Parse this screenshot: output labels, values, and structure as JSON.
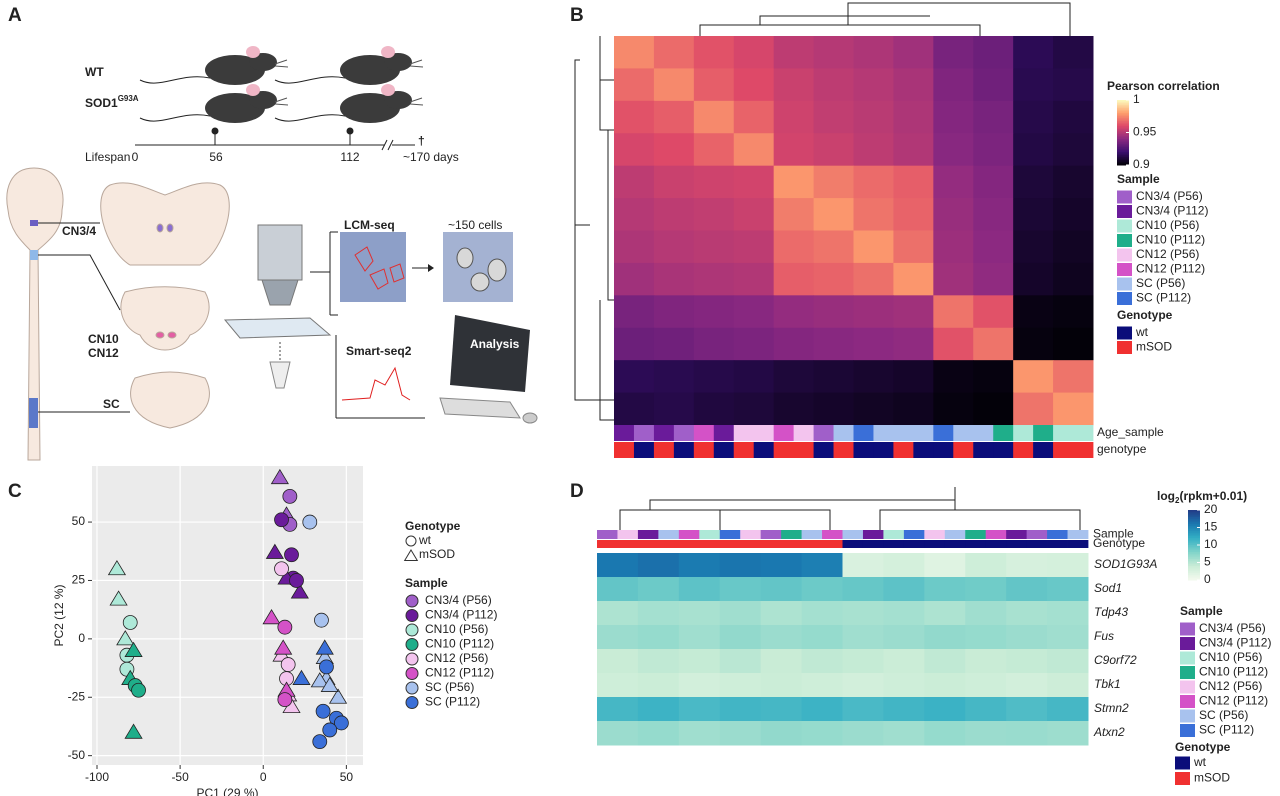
{
  "panels": {
    "a": "A",
    "b": "B",
    "c": "C",
    "d": "D"
  },
  "panel_a": {
    "rows": [
      "WT",
      "SOD1"
    ],
    "superscript": "G93A",
    "timeline": {
      "label": "Lifespan",
      "ticks": [
        "0",
        "56",
        "112",
        "~170 days"
      ],
      "end": "†"
    },
    "regions": [
      "CN3/4",
      "CN10",
      "CN12",
      "SC"
    ],
    "steps": [
      "LCM-seq",
      "~150 cells",
      "Smart-seq2",
      "Analysis"
    ]
  },
  "chart_data": [
    {
      "type": "heatmap",
      "colorbar_title": "Pearson correlation",
      "zlim": [
        0.9,
        1
      ],
      "zticks": [
        1,
        0.95,
        0.9
      ],
      "colormap": [
        "#000004",
        "#3b0f70",
        "#8c2981",
        "#de4968",
        "#fe9f6d",
        "#fcfdbf"
      ],
      "values": [
        [
          0.975,
          0.968,
          0.962,
          0.958,
          0.952,
          0.95,
          0.948,
          0.945,
          0.935,
          0.932,
          0.915,
          0.912
        ],
        [
          0.968,
          0.975,
          0.965,
          0.96,
          0.955,
          0.952,
          0.95,
          0.947,
          0.937,
          0.933,
          0.914,
          0.913
        ],
        [
          0.962,
          0.965,
          0.975,
          0.966,
          0.956,
          0.953,
          0.951,
          0.948,
          0.938,
          0.935,
          0.913,
          0.911
        ],
        [
          0.958,
          0.96,
          0.966,
          0.975,
          0.957,
          0.955,
          0.952,
          0.949,
          0.939,
          0.936,
          0.912,
          0.91
        ],
        [
          0.952,
          0.955,
          0.956,
          0.957,
          0.978,
          0.972,
          0.968,
          0.965,
          0.942,
          0.938,
          0.91,
          0.908
        ],
        [
          0.95,
          0.952,
          0.953,
          0.955,
          0.972,
          0.978,
          0.97,
          0.966,
          0.943,
          0.939,
          0.909,
          0.907
        ],
        [
          0.948,
          0.95,
          0.951,
          0.952,
          0.968,
          0.97,
          0.978,
          0.969,
          0.944,
          0.94,
          0.908,
          0.906
        ],
        [
          0.945,
          0.947,
          0.948,
          0.949,
          0.965,
          0.966,
          0.969,
          0.978,
          0.945,
          0.941,
          0.907,
          0.905
        ],
        [
          0.935,
          0.937,
          0.938,
          0.939,
          0.942,
          0.943,
          0.944,
          0.945,
          0.97,
          0.962,
          0.903,
          0.902
        ],
        [
          0.932,
          0.933,
          0.935,
          0.936,
          0.938,
          0.939,
          0.94,
          0.941,
          0.962,
          0.97,
          0.902,
          0.901
        ],
        [
          0.915,
          0.914,
          0.913,
          0.912,
          0.91,
          0.909,
          0.908,
          0.907,
          0.903,
          0.902,
          0.978,
          0.97
        ],
        [
          0.912,
          0.913,
          0.911,
          0.91,
          0.908,
          0.907,
          0.906,
          0.905,
          0.902,
          0.901,
          0.97,
          0.978
        ]
      ],
      "annotations": [
        {
          "label": "Age_sample",
          "colors": [
            "#6a1b9a",
            "#a05fc9",
            "#6a1b9a",
            "#a05fc9",
            "#d452c7",
            "#6a1b9a",
            "#f3c4ee",
            "#f3c4ee",
            "#d452c7",
            "#f3c4ee",
            "#a05fc9",
            "#a8c2ee",
            "#3a6fd8",
            "#a8c2ee",
            "#a8c2ee",
            "#a8c2ee",
            "#3a6fd8",
            "#a8c2ee",
            "#a8c2ee",
            "#1fae8a",
            "#aee9d8",
            "#1fae8a",
            "#aee9d8",
            "#aee9d8"
          ]
        },
        {
          "label": "genotype",
          "colors": [
            "#f03030",
            "#0b0d7a",
            "#f03030",
            "#0b0d7a",
            "#f03030",
            "#0b0d7a",
            "#f03030",
            "#0b0d7a",
            "#f03030",
            "#f03030",
            "#0b0d7a",
            "#f03030",
            "#0b0d7a",
            "#0b0d7a",
            "#f03030",
            "#0b0d7a",
            "#0b0d7a",
            "#f03030",
            "#0b0d7a",
            "#0b0d7a",
            "#f03030",
            "#0b0d7a",
            "#f03030",
            "#f03030"
          ]
        }
      ],
      "sample_title": "Sample",
      "genotype_title": "Genotype",
      "genotype_legend": [
        {
          "name": "wt",
          "color": "#0b0d7a"
        },
        {
          "name": "mSOD",
          "color": "#f03030"
        }
      ]
    },
    {
      "type": "scatter",
      "xlabel": "PC1 (29 %)",
      "ylabel": "PC2 (12 %)",
      "xlim": [
        -103,
        60
      ],
      "ylim": [
        -54,
        74
      ],
      "xticks": [
        -100,
        -50,
        0,
        50
      ],
      "yticks": [
        -50,
        -25,
        0,
        25,
        50
      ],
      "grid": true,
      "genotype_title": "Genotype",
      "genotypes": [
        "wt",
        "mSOD"
      ],
      "sample_title": "Sample",
      "series": [
        {
          "name": "CN3/4 (P56)",
          "color": "#a05fc9",
          "x": [
            10,
            16,
            14,
            16
          ],
          "values": [
            69,
            61,
            53,
            49
          ],
          "genotype": [
            "mSOD",
            "wt",
            "mSOD",
            "wt"
          ]
        },
        {
          "name": "CN3/4 (P112)",
          "color": "#6a1b9a",
          "x": [
            11,
            7,
            17,
            18,
            14,
            22,
            20
          ],
          "values": [
            51,
            37,
            36,
            26,
            26,
            20,
            25
          ],
          "genotype": [
            "wt",
            "mSOD",
            "wt",
            "wt",
            "mSOD",
            "mSOD",
            "wt"
          ]
        },
        {
          "name": "CN10 (P56)",
          "color": "#aee9d8",
          "x": [
            -88,
            -87,
            -83,
            -80,
            -82,
            -82
          ],
          "values": [
            30,
            17,
            0,
            7,
            -7,
            -13
          ],
          "genotype": [
            "mSOD",
            "mSOD",
            "mSOD",
            "wt",
            "wt",
            "wt"
          ]
        },
        {
          "name": "CN10 (P112)",
          "color": "#1fae8a",
          "x": [
            -80,
            -78,
            -77,
            -75,
            -78
          ],
          "values": [
            -17,
            -5,
            -20,
            -22,
            -40
          ],
          "genotype": [
            "mSOD",
            "mSOD",
            "wt",
            "wt",
            "mSOD"
          ]
        },
        {
          "name": "CN12 (P56)",
          "color": "#f3c4ee",
          "x": [
            11,
            11,
            15,
            15,
            17,
            14
          ],
          "values": [
            30,
            -7,
            -11,
            -24,
            -29,
            -17
          ],
          "genotype": [
            "wt",
            "mSOD",
            "wt",
            "mSOD",
            "mSOD",
            "wt"
          ]
        },
        {
          "name": "CN12 (P112)",
          "color": "#d452c7",
          "x": [
            5,
            13,
            12,
            14,
            13
          ],
          "values": [
            9,
            5,
            -4,
            -22,
            -26
          ],
          "genotype": [
            "mSOD",
            "wt",
            "mSOD",
            "mSOD",
            "wt"
          ]
        },
        {
          "name": "SC (P56)",
          "color": "#a8c2ee",
          "x": [
            28,
            35,
            37,
            38,
            34,
            45,
            40
          ],
          "values": [
            50,
            8,
            -8,
            -17,
            -18,
            -25,
            -20
          ],
          "genotype": [
            "wt",
            "wt",
            "mSOD",
            "mSOD",
            "mSOD",
            "mSOD",
            "mSOD"
          ]
        },
        {
          "name": "SC (P112)",
          "color": "#3a6fd8",
          "x": [
            23,
            37,
            38,
            36,
            44,
            47,
            34,
            40
          ],
          "values": [
            -17,
            -4,
            -12,
            -31,
            -34,
            -36,
            -44,
            -39
          ],
          "genotype": [
            "mSOD",
            "mSOD",
            "wt",
            "wt",
            "wt",
            "wt",
            "wt",
            "wt"
          ]
        }
      ]
    },
    {
      "type": "heatmap",
      "colorbar_title": "log",
      "colorbar_title_sub": "2",
      "colorbar_title_rest": "(rpkm+0.01)",
      "zlim": [
        0,
        20
      ],
      "zticks": [
        20,
        15,
        10,
        5,
        0
      ],
      "colormap": [
        "#f4faee",
        "#c9ecd6",
        "#7fd3c9",
        "#33aec4",
        "#1a78b0",
        "#233a86"
      ],
      "rows": [
        "SOD1G93A",
        "Sod1",
        "Tdp43",
        "Fus",
        "C9orf72",
        "Tbk1",
        "Stmn2",
        "Atxn2"
      ],
      "values": [
        [
          16,
          16.5,
          15.8,
          16.2,
          16,
          15.5,
          2.5,
          3,
          2,
          3.5,
          2.8,
          3
        ],
        [
          9.5,
          9,
          9.8,
          9.2,
          9.5,
          9,
          9.3,
          9.8,
          9,
          8.8,
          9.5,
          9.2
        ],
        [
          5.5,
          6,
          5.8,
          6.2,
          5.5,
          6,
          5.8,
          6,
          5.5,
          6.2,
          5.8,
          6
        ],
        [
          6.5,
          6.8,
          6.2,
          7,
          6.5,
          6.8,
          6.2,
          6.5,
          7,
          6.8,
          6.5,
          6.2
        ],
        [
          4,
          4.5,
          4.2,
          4.8,
          4,
          4.5,
          4.2,
          3.8,
          4.5,
          4,
          4.2,
          4.5
        ],
        [
          3.5,
          3.8,
          3.2,
          3.5,
          3.8,
          3.5,
          3.2,
          3.5,
          3.8,
          3.5,
          3.2,
          3.6
        ],
        [
          11,
          11.5,
          10.8,
          11.2,
          11,
          11.5,
          10.8,
          11.2,
          11.6,
          11,
          10.5,
          11
        ],
        [
          6.5,
          6.8,
          6.2,
          6.5,
          7,
          6.8,
          6.5,
          6.2,
          6.8,
          6.5,
          6.6,
          6.4
        ]
      ],
      "annotations": [
        {
          "label": "Sample",
          "colors": [
            "#a05fc9",
            "#f3c4ee",
            "#6a1b9a",
            "#a8c2ee",
            "#d452c7",
            "#aee9d8",
            "#3a6fd8",
            "#f3c4ee",
            "#a05fc9",
            "#1fae8a",
            "#a8c2ee",
            "#d452c7",
            "#a8c2ee",
            "#6a1b9a",
            "#aee9d8",
            "#3a6fd8",
            "#f3c4ee",
            "#a8c2ee",
            "#1fae8a",
            "#d452c7",
            "#6a1b9a",
            "#a05fc9",
            "#3a6fd8",
            "#a8c2ee"
          ]
        },
        {
          "label": "Genotype",
          "colors": [
            "#f03030",
            "#f03030",
            "#f03030",
            "#f03030",
            "#f03030",
            "#f03030",
            "#f03030",
            "#f03030",
            "#f03030",
            "#f03030",
            "#f03030",
            "#f03030",
            "#0b0d7a",
            "#0b0d7a",
            "#0b0d7a",
            "#0b0d7a",
            "#0b0d7a",
            "#0b0d7a",
            "#0b0d7a",
            "#0b0d7a",
            "#0b0d7a",
            "#0b0d7a",
            "#0b0d7a",
            "#0b0d7a"
          ]
        }
      ],
      "sample_title": "Sample",
      "genotype_title": "Genotype",
      "genotype_legend": [
        {
          "name": "wt",
          "color": "#0b0d7a"
        },
        {
          "name": "mSOD",
          "color": "#f03030"
        }
      ]
    }
  ]
}
